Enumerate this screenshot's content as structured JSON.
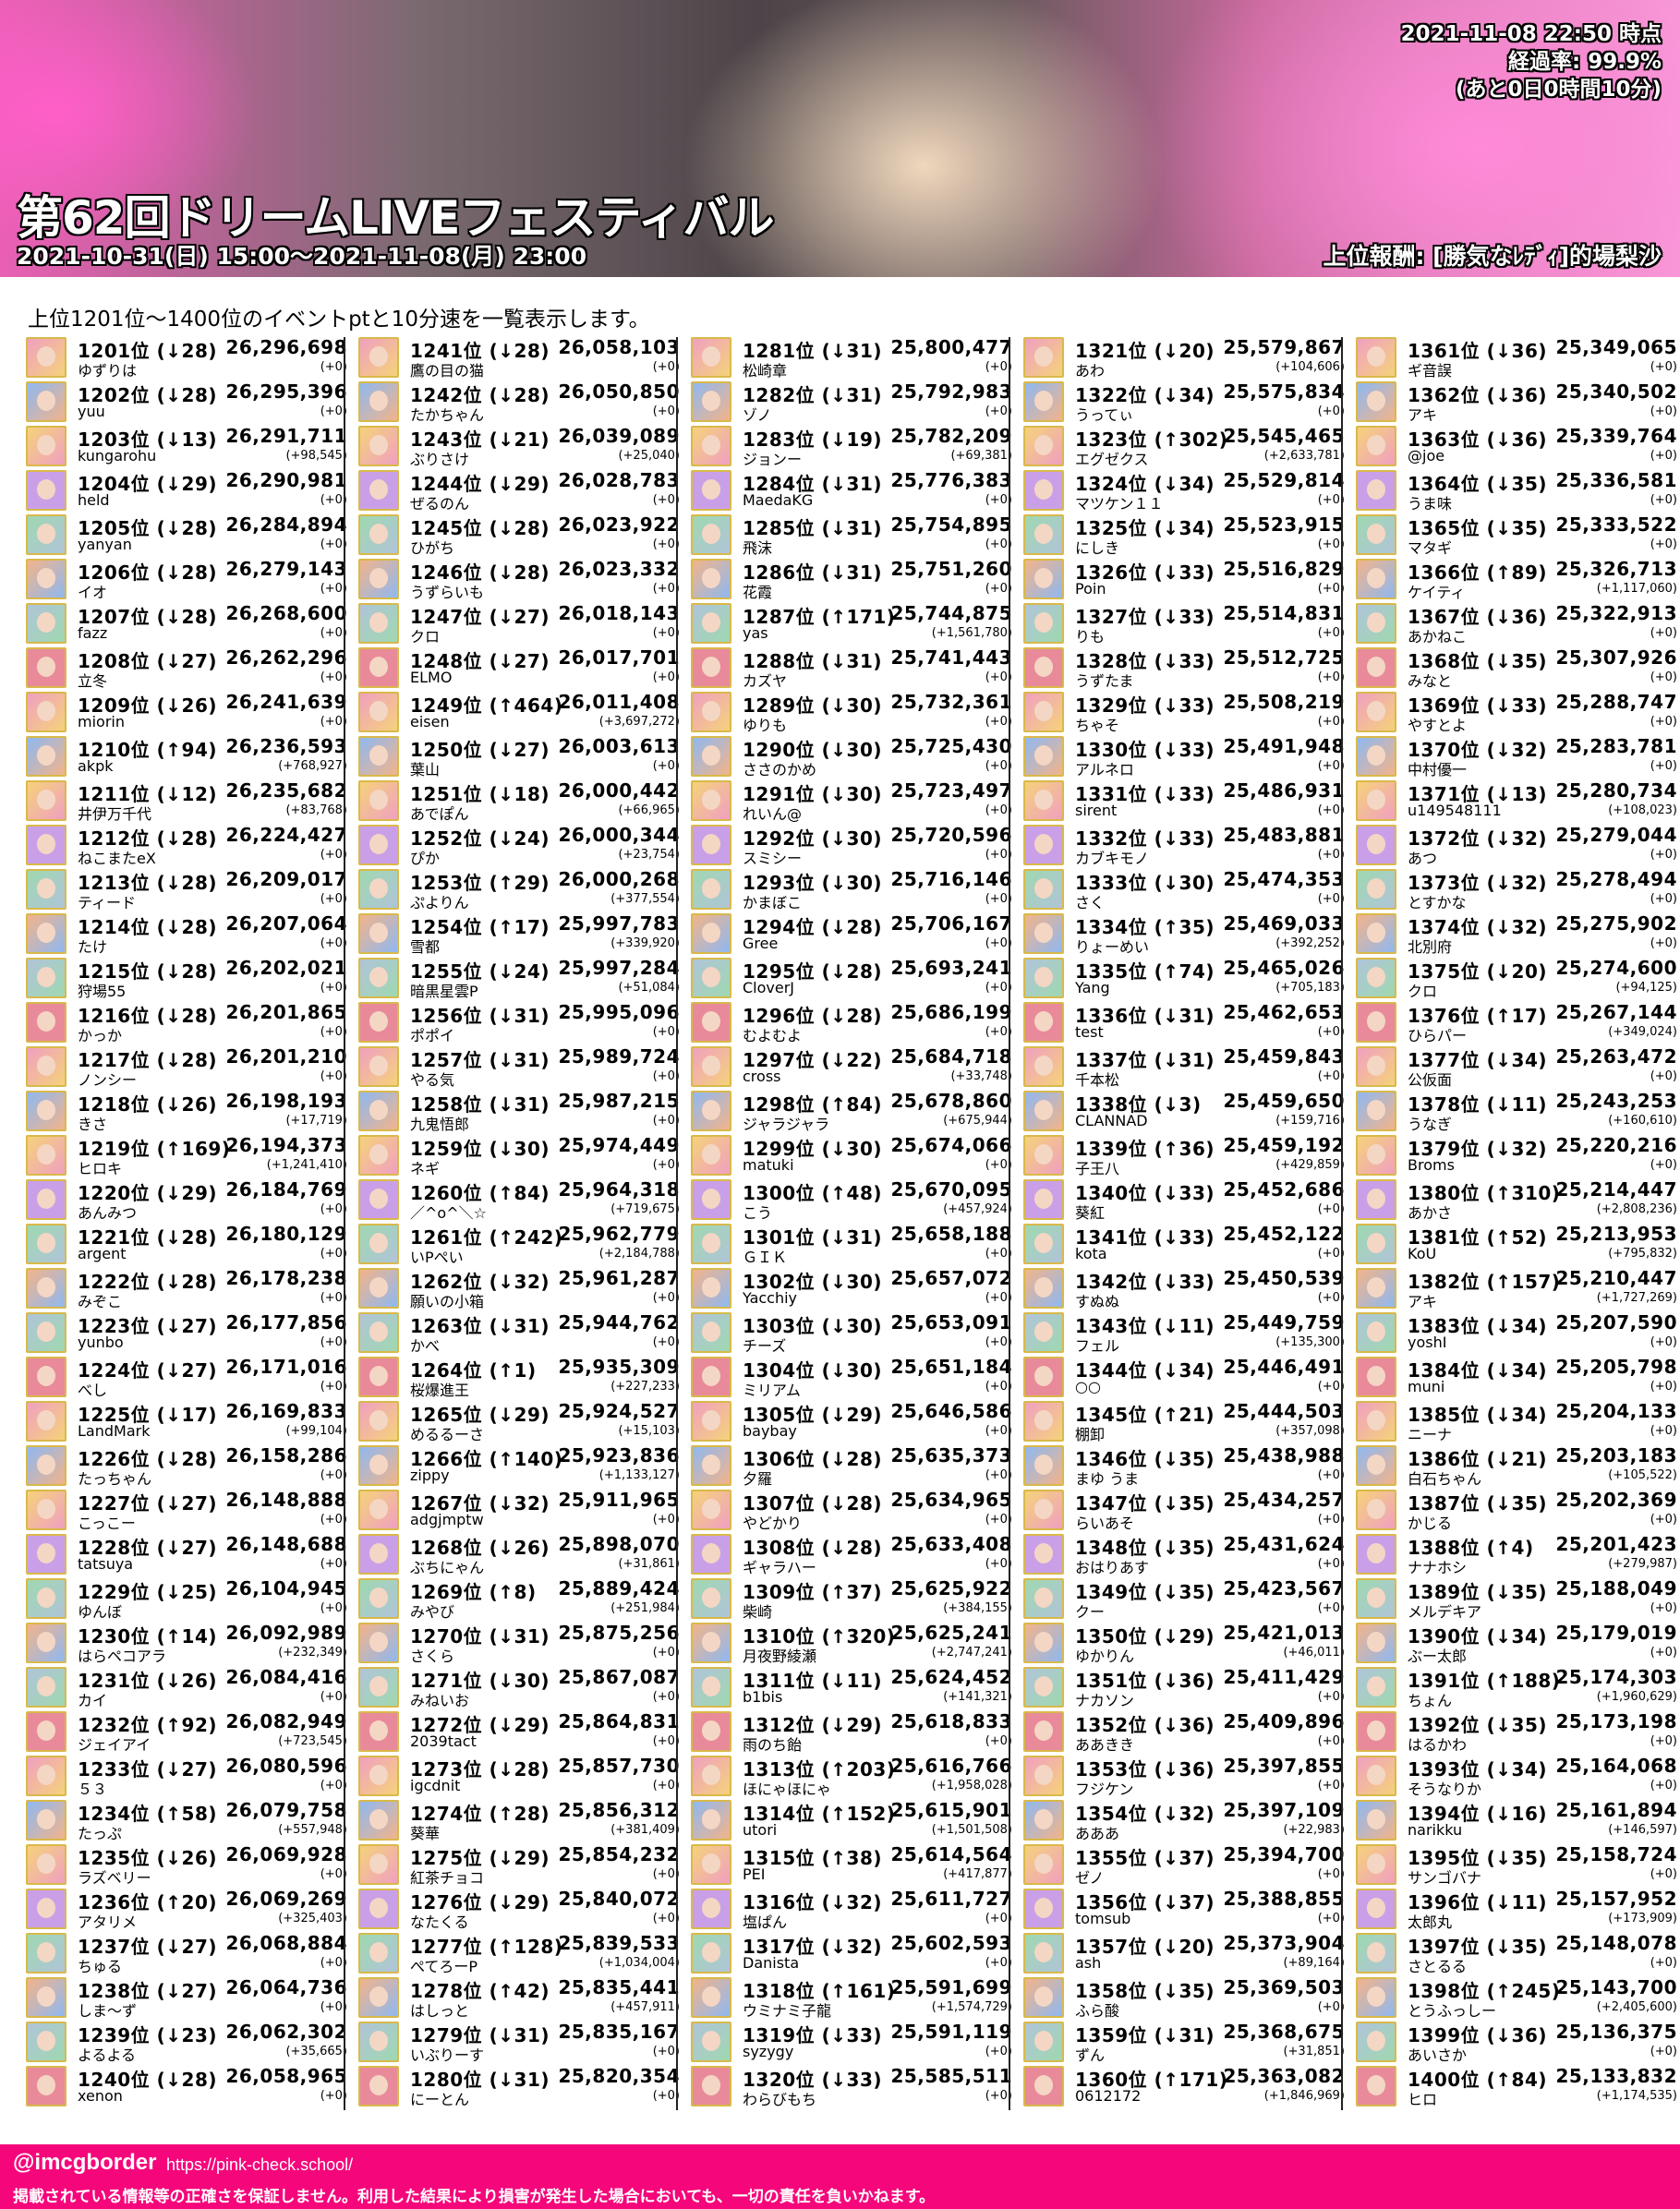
{
  "header": {
    "title": "第62回ドリームLIVEフェスティバル",
    "period": "2021-10-31(日) 15:00〜2021-11-08(月) 23:00",
    "timestamp": "2021-11-08 22:50 時点",
    "progress": "経過率: 99.9%",
    "remaining": "(あと0日0時間10分)",
    "reward": "上位報酬: [勝気なﾚﾃﾞｨ]的場梨沙"
  },
  "intro": "上位1201位〜1400位のイベントptと10分速を一覧表示します。",
  "rows": [
    [
      "1201位 (↓28)",
      "ゆずりは",
      "26,296,698",
      "(+0)"
    ],
    [
      "1202位 (↓28)",
      "yuu",
      "26,295,396",
      "(+0)"
    ],
    [
      "1203位 (↓13)",
      "kungarohu",
      "26,291,711",
      "(+98,545)"
    ],
    [
      "1204位 (↓29)",
      "held",
      "26,290,981",
      "(+0)"
    ],
    [
      "1205位 (↓28)",
      "yanyan",
      "26,284,894",
      "(+0)"
    ],
    [
      "1206位 (↓28)",
      "イオ",
      "26,279,143",
      "(+0)"
    ],
    [
      "1207位 (↓28)",
      "fazz",
      "26,268,600",
      "(+0)"
    ],
    [
      "1208位 (↓27)",
      "立冬",
      "26,262,296",
      "(+0)"
    ],
    [
      "1209位 (↓26)",
      "miorin",
      "26,241,639",
      "(+0)"
    ],
    [
      "1210位 (↑94)",
      "akpk",
      "26,236,593",
      "(+768,927)"
    ],
    [
      "1211位 (↓12)",
      "井伊万千代",
      "26,235,682",
      "(+83,768)"
    ],
    [
      "1212位 (↓28)",
      "ねこまたeX",
      "26,224,427",
      "(+0)"
    ],
    [
      "1213位 (↓28)",
      "ティード",
      "26,209,017",
      "(+0)"
    ],
    [
      "1214位 (↓28)",
      "たけ",
      "26,207,064",
      "(+0)"
    ],
    [
      "1215位 (↓28)",
      "狩場55",
      "26,202,021",
      "(+0)"
    ],
    [
      "1216位 (↓28)",
      "かっか",
      "26,201,865",
      "(+0)"
    ],
    [
      "1217位 (↓28)",
      "ノンシー",
      "26,201,210",
      "(+0)"
    ],
    [
      "1218位 (↓26)",
      "きさ",
      "26,198,193",
      "(+17,719)"
    ],
    [
      "1219位 (↑169)",
      "ヒロキ",
      "26,194,373",
      "(+1,241,410)"
    ],
    [
      "1220位 (↓29)",
      "あんみつ",
      "26,184,769",
      "(+0)"
    ],
    [
      "1221位 (↓28)",
      "argent",
      "26,180,129",
      "(+0)"
    ],
    [
      "1222位 (↓28)",
      "みぞこ",
      "26,178,238",
      "(+0)"
    ],
    [
      "1223位 (↓27)",
      "yunbo",
      "26,177,856",
      "(+0)"
    ],
    [
      "1224位 (↓27)",
      "べし",
      "26,171,016",
      "(+0)"
    ],
    [
      "1225位 (↓17)",
      "LandMark",
      "26,169,833",
      "(+99,104)"
    ],
    [
      "1226位 (↓28)",
      "たっちゃん",
      "26,158,286",
      "(+0)"
    ],
    [
      "1227位 (↓27)",
      "こっこー",
      "26,148,888",
      "(+0)"
    ],
    [
      "1228位 (↓27)",
      "tatsuya",
      "26,148,688",
      "(+0)"
    ],
    [
      "1229位 (↓25)",
      "ゆんぼ",
      "26,104,945",
      "(+0)"
    ],
    [
      "1230位 (↑14)",
      "はらペコアラ",
      "26,092,989",
      "(+232,349)"
    ],
    [
      "1231位 (↓26)",
      "カイ",
      "26,084,416",
      "(+0)"
    ],
    [
      "1232位 (↑92)",
      "ジェイアイ",
      "26,082,949",
      "(+723,545)"
    ],
    [
      "1233位 (↓27)",
      "５３",
      "26,080,596",
      "(+0)"
    ],
    [
      "1234位 (↑58)",
      "たっぷ",
      "26,079,758",
      "(+557,948)"
    ],
    [
      "1235位 (↓26)",
      "ラズベリー",
      "26,069,928",
      "(+0)"
    ],
    [
      "1236位 (↑20)",
      "アタリメ",
      "26,069,269",
      "(+325,403)"
    ],
    [
      "1237位 (↓27)",
      "ちゅる",
      "26,068,884",
      "(+0)"
    ],
    [
      "1238位 (↓27)",
      "しま〜ず",
      "26,064,736",
      "(+0)"
    ],
    [
      "1239位 (↓23)",
      "よるよる",
      "26,062,302",
      "(+35,665)"
    ],
    [
      "1240位 (↓28)",
      "xenon",
      "26,058,965",
      "(+0)"
    ],
    [
      "1241位 (↓28)",
      "鷹の目の猫",
      "26,058,103",
      "(+0)"
    ],
    [
      "1242位 (↓28)",
      "たかちゃん",
      "26,050,850",
      "(+0)"
    ],
    [
      "1243位 (↓21)",
      "ぶりさけ",
      "26,039,089",
      "(+25,040)"
    ],
    [
      "1244位 (↓29)",
      "ぜるのん",
      "26,028,783",
      "(+0)"
    ],
    [
      "1245位 (↓28)",
      "ひがち",
      "26,023,922",
      "(+0)"
    ],
    [
      "1246位 (↓28)",
      "うずらいも",
      "26,023,332",
      "(+0)"
    ],
    [
      "1247位 (↓27)",
      "クロ",
      "26,018,143",
      "(+0)"
    ],
    [
      "1248位 (↓27)",
      "ELMO",
      "26,017,701",
      "(+0)"
    ],
    [
      "1249位 (↑464)",
      "eisen",
      "26,011,408",
      "(+3,697,272)"
    ],
    [
      "1250位 (↓27)",
      "葉山",
      "26,003,613",
      "(+0)"
    ],
    [
      "1251位 (↓18)",
      "あでぽん",
      "26,000,442",
      "(+66,965)"
    ],
    [
      "1252位 (↓24)",
      "ぴか",
      "26,000,344",
      "(+23,754)"
    ],
    [
      "1253位 (↑29)",
      "ぷよりん",
      "26,000,268",
      "(+377,554)"
    ],
    [
      "1254位 (↑17)",
      "雪都",
      "25,997,783",
      "(+339,920)"
    ],
    [
      "1255位 (↓24)",
      "暗黒星雲P",
      "25,997,284",
      "(+51,084)"
    ],
    [
      "1256位 (↓31)",
      "ポポイ",
      "25,995,096",
      "(+0)"
    ],
    [
      "1257位 (↓31)",
      "やる気",
      "25,989,724",
      "(+0)"
    ],
    [
      "1258位 (↓31)",
      "九鬼悟郎",
      "25,987,215",
      "(+0)"
    ],
    [
      "1259位 (↓30)",
      "ネギ",
      "25,974,449",
      "(+0)"
    ],
    [
      "1260位 (↑84)",
      "／^o^＼☆",
      "25,964,318",
      "(+719,675)"
    ],
    [
      "1261位 (↑242)",
      "いPぺい",
      "25,962,779",
      "(+2,184,788)"
    ],
    [
      "1262位 (↓32)",
      "願いの小箱",
      "25,961,287",
      "(+0)"
    ],
    [
      "1263位 (↓31)",
      "かべ",
      "25,944,762",
      "(+0)"
    ],
    [
      "1264位 (↑1)",
      "桜爆進王",
      "25,935,309",
      "(+227,233)"
    ],
    [
      "1265位 (↓29)",
      "めるるーさ",
      "25,924,527",
      "(+15,103)"
    ],
    [
      "1266位 (↑140)",
      "zippy",
      "25,923,836",
      "(+1,133,127)"
    ],
    [
      "1267位 (↓32)",
      "adgjmptw",
      "25,911,965",
      "(+0)"
    ],
    [
      "1268位 (↓26)",
      "ぶちにゃん",
      "25,898,070",
      "(+31,861)"
    ],
    [
      "1269位 (↑8)",
      "みやび",
      "25,889,424",
      "(+251,984)"
    ],
    [
      "1270位 (↓31)",
      "さくら",
      "25,875,256",
      "(+0)"
    ],
    [
      "1271位 (↓30)",
      "みねいお",
      "25,867,087",
      "(+0)"
    ],
    [
      "1272位 (↓29)",
      "2039tact",
      "25,864,831",
      "(+0)"
    ],
    [
      "1273位 (↓28)",
      "igcdnit",
      "25,857,730",
      "(+0)"
    ],
    [
      "1274位 (↑28)",
      "葵華",
      "25,856,312",
      "(+381,409)"
    ],
    [
      "1275位 (↓29)",
      "紅茶チョコ",
      "25,854,232",
      "(+0)"
    ],
    [
      "1276位 (↓29)",
      "なたくる",
      "25,840,072",
      "(+0)"
    ],
    [
      "1277位 (↑128)",
      "ぺてろーP",
      "25,839,533",
      "(+1,034,004)"
    ],
    [
      "1278位 (↑42)",
      "はしっと",
      "25,835,441",
      "(+457,911)"
    ],
    [
      "1279位 (↓31)",
      "いぶりーす",
      "25,835,167",
      "(+0)"
    ],
    [
      "1280位 (↓31)",
      "にーとん",
      "25,820,354",
      "(+0)"
    ],
    [
      "1281位 (↓31)",
      "松崎章",
      "25,800,477",
      "(+0)"
    ],
    [
      "1282位 (↓31)",
      "ゾノ",
      "25,792,983",
      "(+0)"
    ],
    [
      "1283位 (↓19)",
      "ジョンー",
      "25,782,209",
      "(+69,381)"
    ],
    [
      "1284位 (↓31)",
      "MaedaKG",
      "25,776,383",
      "(+0)"
    ],
    [
      "1285位 (↓31)",
      "飛沫",
      "25,754,895",
      "(+0)"
    ],
    [
      "1286位 (↓31)",
      "花霞",
      "25,751,260",
      "(+0)"
    ],
    [
      "1287位 (↑171)",
      "yas",
      "25,744,875",
      "(+1,561,780)"
    ],
    [
      "1288位 (↓31)",
      "カズヤ",
      "25,741,443",
      "(+0)"
    ],
    [
      "1289位 (↓30)",
      "ゆりも",
      "25,732,361",
      "(+0)"
    ],
    [
      "1290位 (↓30)",
      "ささのかめ",
      "25,725,430",
      "(+0)"
    ],
    [
      "1291位 (↓30)",
      "れいん@",
      "25,723,497",
      "(+0)"
    ],
    [
      "1292位 (↓30)",
      "スミシー",
      "25,720,596",
      "(+0)"
    ],
    [
      "1293位 (↓30)",
      "かまぼこ",
      "25,716,146",
      "(+0)"
    ],
    [
      "1294位 (↓28)",
      "Gree",
      "25,706,167",
      "(+0)"
    ],
    [
      "1295位 (↓28)",
      "CloverJ",
      "25,693,241",
      "(+0)"
    ],
    [
      "1296位 (↓28)",
      "むよむよ",
      "25,686,199",
      "(+0)"
    ],
    [
      "1297位 (↓22)",
      "cross",
      "25,684,718",
      "(+33,748)"
    ],
    [
      "1298位 (↑84)",
      "ジャラジャラ",
      "25,678,860",
      "(+675,944)"
    ],
    [
      "1299位 (↓30)",
      "matuki",
      "25,674,066",
      "(+0)"
    ],
    [
      "1300位 (↑48)",
      "こう",
      "25,670,095",
      "(+457,924)"
    ],
    [
      "1301位 (↓31)",
      "ＧＩＫ",
      "25,658,188",
      "(+0)"
    ],
    [
      "1302位 (↓30)",
      "Yacchiy",
      "25,657,072",
      "(+0)"
    ],
    [
      "1303位 (↓30)",
      "チーズ",
      "25,653,091",
      "(+0)"
    ],
    [
      "1304位 (↓30)",
      "ミリアム",
      "25,651,184",
      "(+0)"
    ],
    [
      "1305位 (↓29)",
      "baybay",
      "25,646,586",
      "(+0)"
    ],
    [
      "1306位 (↓28)",
      "夕羅",
      "25,635,373",
      "(+0)"
    ],
    [
      "1307位 (↓28)",
      "やどかり",
      "25,634,965",
      "(+0)"
    ],
    [
      "1308位 (↓28)",
      "ギャラハー",
      "25,633,408",
      "(+0)"
    ],
    [
      "1309位 (↑37)",
      "柴崎",
      "25,625,922",
      "(+384,155)"
    ],
    [
      "1310位 (↑320)",
      "月夜野綾瀬",
      "25,625,241",
      "(+2,747,241)"
    ],
    [
      "1311位 (↓11)",
      "b1bis",
      "25,624,452",
      "(+141,321)"
    ],
    [
      "1312位 (↓29)",
      "雨のち飴",
      "25,618,833",
      "(+0)"
    ],
    [
      "1313位 (↑203)",
      "ほにゃほにゃ",
      "25,616,766",
      "(+1,958,028)"
    ],
    [
      "1314位 (↑152)",
      "utori",
      "25,615,901",
      "(+1,501,508)"
    ],
    [
      "1315位 (↑38)",
      "PEI",
      "25,614,564",
      "(+417,877)"
    ],
    [
      "1316位 (↓32)",
      "塩ぱん",
      "25,611,727",
      "(+0)"
    ],
    [
      "1317位 (↓32)",
      "Danista",
      "25,602,593",
      "(+0)"
    ],
    [
      "1318位 (↑161)",
      "ウミナミ子龍",
      "25,591,699",
      "(+1,574,729)"
    ],
    [
      "1319位 (↓33)",
      "syzygy",
      "25,591,119",
      "(+0)"
    ],
    [
      "1320位 (↓33)",
      "わらびもち",
      "25,585,511",
      "(+0)"
    ],
    [
      "1321位 (↓20)",
      "あわ",
      "25,579,867",
      "(+104,606)"
    ],
    [
      "1322位 (↓34)",
      "うってぃ",
      "25,575,834",
      "(+0)"
    ],
    [
      "1323位 (↑302)",
      "エグゼクス",
      "25,545,465",
      "(+2,633,781)"
    ],
    [
      "1324位 (↓34)",
      "マツケン１１",
      "25,529,814",
      "(+0)"
    ],
    [
      "1325位 (↓34)",
      "にしき",
      "25,523,915",
      "(+0)"
    ],
    [
      "1326位 (↓33)",
      "Poin",
      "25,516,829",
      "(+0)"
    ],
    [
      "1327位 (↓33)",
      "りも",
      "25,514,831",
      "(+0)"
    ],
    [
      "1328位 (↓33)",
      "うずたま",
      "25,512,725",
      "(+0)"
    ],
    [
      "1329位 (↓33)",
      "ちゃそ",
      "25,508,219",
      "(+0)"
    ],
    [
      "1330位 (↓33)",
      "アルネロ",
      "25,491,948",
      "(+0)"
    ],
    [
      "1331位 (↓33)",
      "sirent",
      "25,486,931",
      "(+0)"
    ],
    [
      "1332位 (↓33)",
      "カブキモノ",
      "25,483,881",
      "(+0)"
    ],
    [
      "1333位 (↓30)",
      "さく",
      "25,474,353",
      "(+0)"
    ],
    [
      "1334位 (↑35)",
      "りょーめい",
      "25,469,033",
      "(+392,252)"
    ],
    [
      "1335位 (↑74)",
      "Yang",
      "25,465,026",
      "(+705,183)"
    ],
    [
      "1336位 (↓31)",
      "test",
      "25,462,653",
      "(+0)"
    ],
    [
      "1337位 (↓31)",
      "千本松",
      "25,459,843",
      "(+0)"
    ],
    [
      "1338位 (↓3)",
      "CLANNAD",
      "25,459,650",
      "(+159,716)"
    ],
    [
      "1339位 (↑36)",
      "子王八",
      "25,459,192",
      "(+429,859)"
    ],
    [
      "1340位 (↓33)",
      "葵紅",
      "25,452,686",
      "(+0)"
    ],
    [
      "1341位 (↓33)",
      "kota",
      "25,452,122",
      "(+0)"
    ],
    [
      "1342位 (↓33)",
      "すぬぬ",
      "25,450,539",
      "(+0)"
    ],
    [
      "1343位 (↓11)",
      "フェル",
      "25,449,759",
      "(+135,300)"
    ],
    [
      "1344位 (↓34)",
      "○○",
      "25,446,491",
      "(+0)"
    ],
    [
      "1345位 (↑21)",
      "棚卸",
      "25,444,503",
      "(+357,098)"
    ],
    [
      "1346位 (↓35)",
      "まゆ うま",
      "25,438,988",
      "(+0)"
    ],
    [
      "1347位 (↓35)",
      "らいあそ",
      "25,434,257",
      "(+0)"
    ],
    [
      "1348位 (↓35)",
      "おはりあす",
      "25,431,624",
      "(+0)"
    ],
    [
      "1349位 (↓35)",
      "クー",
      "25,423,567",
      "(+0)"
    ],
    [
      "1350位 (↓29)",
      "ゆかりん",
      "25,421,013",
      "(+46,011)"
    ],
    [
      "1351位 (↓36)",
      "ナカソン",
      "25,411,429",
      "(+0)"
    ],
    [
      "1352位 (↓36)",
      "ああきき",
      "25,409,896",
      "(+0)"
    ],
    [
      "1353位 (↓36)",
      "フジケン",
      "25,397,855",
      "(+0)"
    ],
    [
      "1354位 (↓32)",
      "あああ",
      "25,397,109",
      "(+22,983)"
    ],
    [
      "1355位 (↓37)",
      "ゼノ",
      "25,394,700",
      "(+0)"
    ],
    [
      "1356位 (↓37)",
      "tomsub",
      "25,388,855",
      "(+0)"
    ],
    [
      "1357位 (↓20)",
      "ash",
      "25,373,904",
      "(+89,164)"
    ],
    [
      "1358位 (↓35)",
      "ふら酸",
      "25,369,503",
      "(+0)"
    ],
    [
      "1359位 (↓31)",
      "ずん",
      "25,368,675",
      "(+31,851)"
    ],
    [
      "1360位 (↑171)",
      "0612172",
      "25,363,082",
      "(+1,846,969)"
    ],
    [
      "1361位 (↓36)",
      "ギ音誤",
      "25,349,065",
      "(+0)"
    ],
    [
      "1362位 (↓36)",
      "アキ",
      "25,340,502",
      "(+0)"
    ],
    [
      "1363位 (↓36)",
      "@joe",
      "25,339,764",
      "(+0)"
    ],
    [
      "1364位 (↓35)",
      "うま味",
      "25,336,581",
      "(+0)"
    ],
    [
      "1365位 (↓35)",
      "マタギ",
      "25,333,522",
      "(+0)"
    ],
    [
      "1366位 (↑89)",
      "ケイティ",
      "25,326,713",
      "(+1,117,060)"
    ],
    [
      "1367位 (↓36)",
      "あかねこ",
      "25,322,913",
      "(+0)"
    ],
    [
      "1368位 (↓35)",
      "みなと",
      "25,307,926",
      "(+0)"
    ],
    [
      "1369位 (↓33)",
      "やすとよ",
      "25,288,747",
      "(+0)"
    ],
    [
      "1370位 (↓32)",
      "中村優一",
      "25,283,781",
      "(+0)"
    ],
    [
      "1371位 (↓13)",
      "u149548111",
      "25,280,734",
      "(+108,023)"
    ],
    [
      "1372位 (↓32)",
      "あつ",
      "25,279,044",
      "(+0)"
    ],
    [
      "1373位 (↓32)",
      "とすかな",
      "25,278,494",
      "(+0)"
    ],
    [
      "1374位 (↓32)",
      "北別府",
      "25,275,902",
      "(+0)"
    ],
    [
      "1375位 (↓20)",
      "クロ",
      "25,274,600",
      "(+94,125)"
    ],
    [
      "1376位 (↑17)",
      "ひらパー",
      "25,267,144",
      "(+349,024)"
    ],
    [
      "1377位 (↓34)",
      "公仮面",
      "25,263,472",
      "(+0)"
    ],
    [
      "1378位 (↓11)",
      "うなぎ",
      "25,243,253",
      "(+160,610)"
    ],
    [
      "1379位 (↓32)",
      "Broms",
      "25,220,216",
      "(+0)"
    ],
    [
      "1380位 (↑310)",
      "あかさ",
      "25,214,447",
      "(+2,808,236)"
    ],
    [
      "1381位 (↑52)",
      "KoU",
      "25,213,953",
      "(+795,832)"
    ],
    [
      "1382位 (↑157)",
      "アキ",
      "25,210,447",
      "(+1,727,269)"
    ],
    [
      "1383位 (↓34)",
      "yoshI",
      "25,207,590",
      "(+0)"
    ],
    [
      "1384位 (↓34)",
      "muni",
      "25,205,798",
      "(+0)"
    ],
    [
      "1385位 (↓34)",
      "ニーナ",
      "25,204,133",
      "(+0)"
    ],
    [
      "1386位 (↓21)",
      "白石ちゃん",
      "25,203,183",
      "(+105,522)"
    ],
    [
      "1387位 (↓35)",
      "かじる",
      "25,202,369",
      "(+0)"
    ],
    [
      "1388位 (↑4)",
      "ナナホシ",
      "25,201,423",
      "(+279,987)"
    ],
    [
      "1389位 (↓35)",
      "メルデキア",
      "25,188,049",
      "(+0)"
    ],
    [
      "1390位 (↓34)",
      "ぶー太郎",
      "25,179,019",
      "(+0)"
    ],
    [
      "1391位 (↑188)",
      "ちょん",
      "25,174,303",
      "(+1,960,629)"
    ],
    [
      "1392位 (↓35)",
      "はるかわ",
      "25,173,198",
      "(+0)"
    ],
    [
      "1393位 (↓34)",
      "そうなりか",
      "25,164,068",
      "(+0)"
    ],
    [
      "1394位 (↓16)",
      "narikku",
      "25,161,894",
      "(+146,597)"
    ],
    [
      "1395位 (↓35)",
      "サンゴバナ",
      "25,158,724",
      "(+0)"
    ],
    [
      "1396位 (↓11)",
      "太郎丸",
      "25,157,952",
      "(+173,909)"
    ],
    [
      "1397位 (↓35)",
      "さとるる",
      "25,148,078",
      "(+0)"
    ],
    [
      "1398位 (↑245)",
      "とうふっしー",
      "25,143,700",
      "(+2,405,600)"
    ],
    [
      "1399位 (↓36)",
      "あいさか",
      "25,136,375",
      "(+0)"
    ],
    [
      "1400位 (↑84)",
      "ヒロ",
      "25,133,832",
      "(+1,174,535)"
    ]
  ],
  "footer": {
    "handle": "@imcgborder",
    "url": "https://pink-check.school/",
    "disclaimer": "掲載されている情報等の正確さを保証しません。利用した結果により損害が発生した場合においても、一切の責任を負いかねます。"
  },
  "colors": {
    "footer": "#f5067b",
    "avatar_frame": "#d9b94a"
  }
}
